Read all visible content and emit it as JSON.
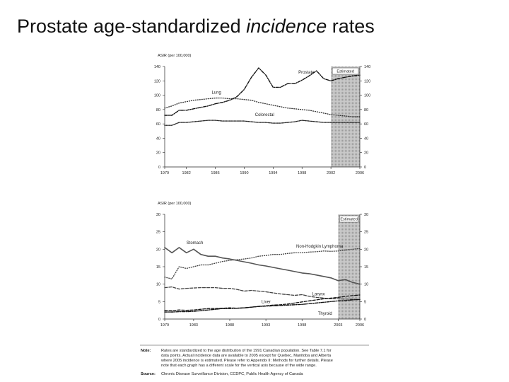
{
  "slide": {
    "title_prefix": "Prostate age-standardized ",
    "title_emphasis": "incidence",
    "title_suffix": " rates"
  },
  "chart_data": [
    {
      "type": "line",
      "ylabel": "ASIR (per 100,000)",
      "estimated_label": "Estimated",
      "estimated_range": [
        2002,
        2006
      ],
      "xlim": [
        1979,
        2006
      ],
      "ylim": [
        0,
        140
      ],
      "x_ticks": [
        1979,
        1982,
        1986,
        1990,
        1994,
        1998,
        2002,
        2006
      ],
      "x_tick_labels": [
        "1979",
        "1982",
        "1986",
        "1990",
        "1994",
        "1998",
        "2002",
        "2006"
      ],
      "y_ticks": [
        0,
        20,
        40,
        60,
        80,
        100,
        120,
        140
      ],
      "y_tick_labels_left": [
        "0",
        "20",
        "40",
        "60",
        "80",
        "100",
        "120",
        "140"
      ],
      "y_tick_labels_right": [
        "0",
        "20",
        "40",
        "60",
        "80",
        "100",
        "120",
        "140"
      ],
      "series": [
        {
          "name": "Prostate",
          "label": "Prostate",
          "color": "#111111",
          "style": "dashdot",
          "label_x": 1997.5,
          "label_y": 130,
          "x": [
            1979,
            1980,
            1981,
            1982,
            1983,
            1984,
            1985,
            1986,
            1987,
            1988,
            1989,
            1990,
            1991,
            1992,
            1993,
            1994,
            1995,
            1996,
            1997,
            1998,
            1999,
            2000,
            2001,
            2002,
            2003,
            2004,
            2005,
            2006
          ],
          "y": [
            72,
            72,
            79,
            79,
            81,
            83,
            85,
            88,
            90,
            93,
            98,
            108,
            125,
            138,
            128,
            111,
            111,
            116,
            116,
            121,
            127,
            134,
            123,
            120,
            123,
            125,
            127,
            128
          ]
        },
        {
          "name": "Lung",
          "label": "Lung",
          "color": "#333333",
          "style": "dotted",
          "label_x": 1985.5,
          "label_y": 102,
          "x": [
            1979,
            1980,
            1981,
            1982,
            1983,
            1984,
            1985,
            1986,
            1987,
            1988,
            1989,
            1990,
            1991,
            1992,
            1993,
            1994,
            1995,
            1996,
            1997,
            1998,
            1999,
            2000,
            2001,
            2002,
            2003,
            2004,
            2005,
            2006
          ],
          "y": [
            82,
            85,
            89,
            91,
            93,
            94,
            95,
            96,
            96,
            95,
            95,
            94,
            93,
            90,
            88,
            86,
            84,
            82,
            81,
            80,
            79,
            77,
            75,
            73,
            72,
            71,
            70,
            70
          ]
        },
        {
          "name": "Colorectal",
          "label": "Colorectal",
          "color": "#222222",
          "style": "densedot",
          "label_x": 1991.5,
          "label_y": 71,
          "x": [
            1979,
            1980,
            1981,
            1982,
            1983,
            1984,
            1985,
            1986,
            1987,
            1988,
            1989,
            1990,
            1991,
            1992,
            1993,
            1994,
            1995,
            1996,
            1997,
            1998,
            1999,
            2000,
            2001,
            2002,
            2003,
            2004,
            2005,
            2006
          ],
          "y": [
            58,
            58,
            62,
            62,
            63,
            64,
            65,
            65,
            64,
            64,
            64,
            64,
            63,
            62,
            62,
            61,
            61,
            62,
            63,
            65,
            64,
            63,
            62,
            62,
            62,
            62,
            62,
            62
          ]
        }
      ]
    },
    {
      "type": "line",
      "ylabel": "ASIR (per 100,000)",
      "estimated_label": "Estimated",
      "estimated_range": [
        2003,
        2006
      ],
      "xlim": [
        1979,
        2006
      ],
      "ylim": [
        0,
        30
      ],
      "x_ticks": [
        1979,
        1983,
        1988,
        1993,
        1998,
        2003,
        2006
      ],
      "x_tick_labels": [
        "1979",
        "1983",
        "1988",
        "1993",
        "1998",
        "2003",
        "2006"
      ],
      "y_ticks": [
        0,
        5,
        10,
        15,
        20,
        25,
        30
      ],
      "y_tick_labels_left": [
        "0",
        "5",
        "10",
        "15",
        "20",
        "25",
        "30"
      ],
      "y_tick_labels_right": [
        "0",
        "5",
        "10",
        "15",
        "20",
        "25",
        "30"
      ],
      "series": [
        {
          "name": "Stomach",
          "label": "Stomach",
          "color": "#555555",
          "style": "solid",
          "label_x": 1982,
          "label_y": 21.5,
          "x": [
            1979,
            1980,
            1981,
            1982,
            1983,
            1984,
            1985,
            1986,
            1987,
            1988,
            1989,
            1990,
            1991,
            1992,
            1993,
            1994,
            1995,
            1996,
            1997,
            1998,
            1999,
            2000,
            2001,
            2002,
            2003,
            2004,
            2005,
            2006
          ],
          "y": [
            20.5,
            19,
            20.5,
            19,
            20,
            18.5,
            18,
            18,
            17.5,
            17.2,
            16.8,
            16.4,
            16,
            15.5,
            15.2,
            14.8,
            14.4,
            14,
            13.6,
            13.2,
            13,
            12.6,
            12.2,
            11.8,
            11,
            11.3,
            10.5,
            10
          ]
        },
        {
          "name": "Non-Hodgkin Lymphoma",
          "label": "Non-Hodgkin Lymphoma",
          "color": "#444444",
          "style": "dotted",
          "label_x": 1997.2,
          "label_y": 20.5,
          "x": [
            1979,
            1980,
            1981,
            1982,
            1983,
            1984,
            1985,
            1986,
            1987,
            1988,
            1989,
            1990,
            1991,
            1992,
            1993,
            1994,
            1995,
            1996,
            1997,
            1998,
            1999,
            2000,
            2001,
            2002,
            2003,
            2004,
            2005,
            2006
          ],
          "y": [
            12,
            11.5,
            15,
            14.5,
            15,
            15.5,
            15.5,
            16,
            16.5,
            16.8,
            17,
            17.2,
            17.5,
            18,
            18.2,
            18.5,
            18.5,
            18.8,
            19,
            19,
            19.2,
            19.3,
            19.5,
            19.4,
            19.5,
            19.8,
            20,
            20.2
          ]
        },
        {
          "name": "Larynx",
          "label": "Larynx",
          "color": "#444444",
          "style": "dashed",
          "label_x": 1999.4,
          "label_y": 6.8,
          "x": [
            1979,
            1980,
            1981,
            1982,
            1983,
            1984,
            1985,
            1986,
            1987,
            1988,
            1989,
            1990,
            1991,
            1992,
            1993,
            1994,
            1995,
            1996,
            1997,
            1998,
            1999,
            2000,
            2001,
            2002,
            2003,
            2004,
            2005,
            2006
          ],
          "y": [
            9,
            9.2,
            8.6,
            8.8,
            8.9,
            9,
            9,
            9,
            8.8,
            8.8,
            8.5,
            8,
            8.2,
            8,
            7.8,
            7.5,
            7.2,
            7,
            6.8,
            7,
            6.5,
            6.2,
            6,
            5.8,
            5.8,
            5.7,
            5.7,
            5.6
          ]
        },
        {
          "name": "Liver",
          "label": "Liver",
          "color": "#111111",
          "style": "dashdot",
          "label_x": 1992.4,
          "label_y": 4.6,
          "x": [
            1979,
            1980,
            1981,
            1982,
            1983,
            1984,
            1985,
            1986,
            1987,
            1988,
            1989,
            1990,
            1991,
            1992,
            1993,
            1994,
            1995,
            1996,
            1997,
            1998,
            1999,
            2000,
            2001,
            2002,
            2003,
            2004,
            2005,
            2006
          ],
          "y": [
            2,
            2,
            2.1,
            2.1,
            2.2,
            2.4,
            2.6,
            2.8,
            3,
            3,
            3.1,
            3.2,
            3.4,
            3.6,
            3.7,
            3.8,
            3.9,
            4,
            4.1,
            4.2,
            4.4,
            4.6,
            4.8,
            5,
            5.2,
            5.3,
            5.5,
            5.6
          ]
        },
        {
          "name": "Thyroid",
          "label": "Thyroid",
          "color": "#111111",
          "style": "dashed",
          "label_x": 2000.2,
          "label_y": 1.2,
          "x": [
            1979,
            1980,
            1981,
            1982,
            1983,
            1984,
            1985,
            1986,
            1987,
            1988,
            1989,
            1990,
            1991,
            1992,
            1993,
            1994,
            1995,
            1996,
            1997,
            1998,
            1999,
            2000,
            2001,
            2002,
            2003,
            2004,
            2005,
            2006
          ],
          "y": [
            2.5,
            2.4,
            2.6,
            2.5,
            2.6,
            2.8,
            3,
            3,
            3.1,
            3.2,
            3.1,
            3.2,
            3.4,
            3.6,
            3.8,
            4,
            4.1,
            4.3,
            4.6,
            4.9,
            5.2,
            5.5,
            5.8,
            6,
            6.2,
            6.5,
            6.7,
            6.9
          ]
        }
      ]
    }
  ],
  "footnote": {
    "note_label": "Note:",
    "note_lines": [
      "Rates are standardized to the age distribution of the 1991 Canadian population. See Table 7.1 for",
      "data points. Actual incidence data are available to 2005 except for Quebec, Manitoba and Alberta",
      "where 2005 incidence is estimated. Please refer to Appendix II: Methods for further details. Please",
      "note that each graph has a different scale for the vertical axis because of the wide range."
    ],
    "source_label": "Source:",
    "source_text": "Chronic Disease Surveillance Division, CCDPC, Public Health Agency of Canada"
  }
}
